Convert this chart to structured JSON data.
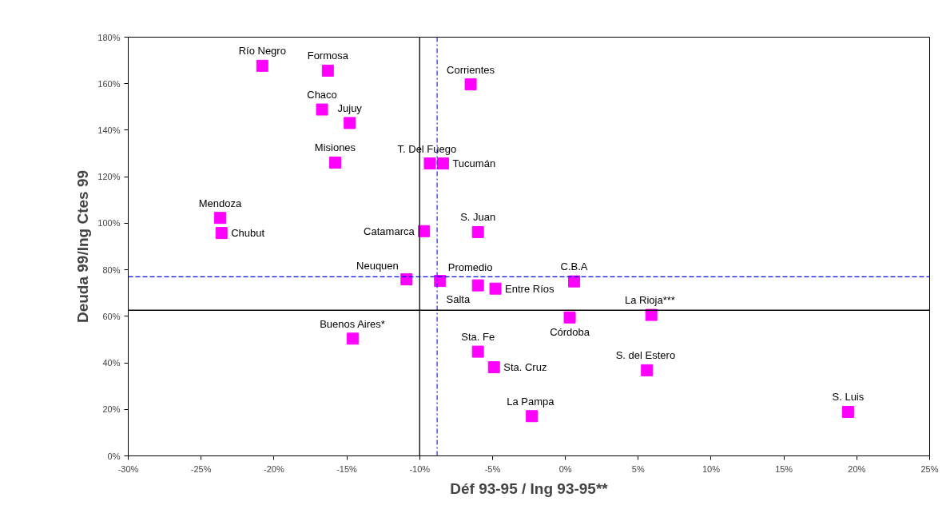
{
  "chart_data": {
    "type": "scatter",
    "xlabel": "Déf 93-95 / Ing 93-95**",
    "ylabel": "Deuda 99/Ing Ctes 99",
    "series": [
      {
        "color": "#ff00ff",
        "marker": "square",
        "x": [
          -20.8,
          -16.3,
          -6.5,
          -16.7,
          -14.8,
          -15.8,
          -9.3,
          -8.4,
          -23.7,
          -23.6,
          -9.7,
          -6.0,
          -10.9,
          -8.6,
          -6.0,
          -4.8,
          0.6,
          0.3,
          5.9,
          -14.6,
          -6.0,
          -4.9,
          5.6,
          -2.3,
          19.4
        ],
        "values": [
          167.7,
          165.6,
          159.7,
          148.9,
          143.1,
          126.1,
          125.7,
          125.7,
          102.3,
          95.8,
          96.6,
          96.2,
          75.9,
          75.2,
          73.3,
          71.9,
          75.0,
          59.5,
          60.6,
          50.4,
          44.8,
          38.1,
          36.8,
          17.1,
          18.9
        ]
      }
    ],
    "annotations": [
      {
        "text": "Río Negro",
        "x": -20.8,
        "y": 167.7
      },
      {
        "text": "Formosa",
        "x": -16.3,
        "y": 165.6
      },
      {
        "text": "Corrientes",
        "x": -6.5,
        "y": 159.7
      },
      {
        "text": "Chaco",
        "x": -16.7,
        "y": 148.9
      },
      {
        "text": "Jujuy",
        "x": -14.8,
        "y": 143.1
      },
      {
        "text": "Misiones",
        "x": -15.8,
        "y": 126.1
      },
      {
        "text": "T.  Del  Fuego",
        "x": -9.3,
        "y": 125.7
      },
      {
        "text": "Tucumán",
        "x": -8.4,
        "y": 125.7
      },
      {
        "text": "Mendoza",
        "x": -23.7,
        "y": 102.3
      },
      {
        "text": "Chubut",
        "x": -23.6,
        "y": 95.8
      },
      {
        "text": "Catamarca",
        "x": -9.7,
        "y": 96.6
      },
      {
        "text": "S. Juan",
        "x": -6.0,
        "y": 96.2
      },
      {
        "text": "Neuquen",
        "x": -10.9,
        "y": 75.9
      },
      {
        "text": "Promedio",
        "x": -8.6,
        "y": 75.2
      },
      {
        "text": "Salta",
        "x": -6.0,
        "y": 73.3
      },
      {
        "text": "Entre Ríos",
        "x": -4.8,
        "y": 71.9
      },
      {
        "text": "C.B.A",
        "x": 0.6,
        "y": 75.0
      },
      {
        "text": "Córdoba",
        "x": 0.3,
        "y": 59.5
      },
      {
        "text": "La  Rioja***",
        "x": 5.9,
        "y": 60.6
      },
      {
        "text": "Buenos Aires*",
        "x": -14.6,
        "y": 50.4
      },
      {
        "text": "Sta. Fe",
        "x": -6.0,
        "y": 44.8
      },
      {
        "text": "Sta. Cruz",
        "x": -4.9,
        "y": 38.1
      },
      {
        "text": "S. del  Estero",
        "x": 5.6,
        "y": 36.8
      },
      {
        "text": "La  Pampa",
        "x": -2.3,
        "y": 17.1
      },
      {
        "text": "S. Luis",
        "x": 19.4,
        "y": 18.9
      }
    ],
    "ref_lines": [
      {
        "axis": "x",
        "value": -10.0,
        "color": "#000000",
        "line_style": "solid"
      },
      {
        "axis": "x",
        "value": -8.8,
        "color": "#3333ff",
        "line_style": "dashdot"
      },
      {
        "axis": "y",
        "value": 62.6,
        "color": "#000000",
        "line_style": "solid"
      },
      {
        "axis": "y",
        "value": 77.0,
        "color": "#0000ee",
        "line_style": "dashed"
      }
    ],
    "xlim": [
      -30,
      25
    ],
    "xticks": [
      {
        "value": -30,
        "label": "-30%"
      },
      {
        "value": -25,
        "label": "-25%"
      },
      {
        "value": -20,
        "label": "-20%"
      },
      {
        "value": -15,
        "label": "-15%"
      },
      {
        "value": -10,
        "label": "-10%"
      },
      {
        "value": -5,
        "label": "-5%"
      },
      {
        "value": 0,
        "label": "0%"
      },
      {
        "value": 5,
        "label": "5%"
      },
      {
        "value": 10,
        "label": "10%"
      },
      {
        "value": 15,
        "label": "15%"
      },
      {
        "value": 20,
        "label": "20%"
      },
      {
        "value": 25,
        "label": "25%"
      }
    ],
    "ylim": [
      0,
      180
    ],
    "yticks": [
      {
        "value": 0,
        "label": "0%"
      },
      {
        "value": 20,
        "label": "20%"
      },
      {
        "value": 40,
        "label": "40%"
      },
      {
        "value": 60,
        "label": "60%"
      },
      {
        "value": 80,
        "label": "80%"
      },
      {
        "value": 100,
        "label": "100%"
      },
      {
        "value": 120,
        "label": "120%"
      },
      {
        "value": 140,
        "label": "140%"
      },
      {
        "value": 160,
        "label": "160%"
      },
      {
        "value": 180,
        "label": "180%"
      }
    ],
    "grid": false
  }
}
